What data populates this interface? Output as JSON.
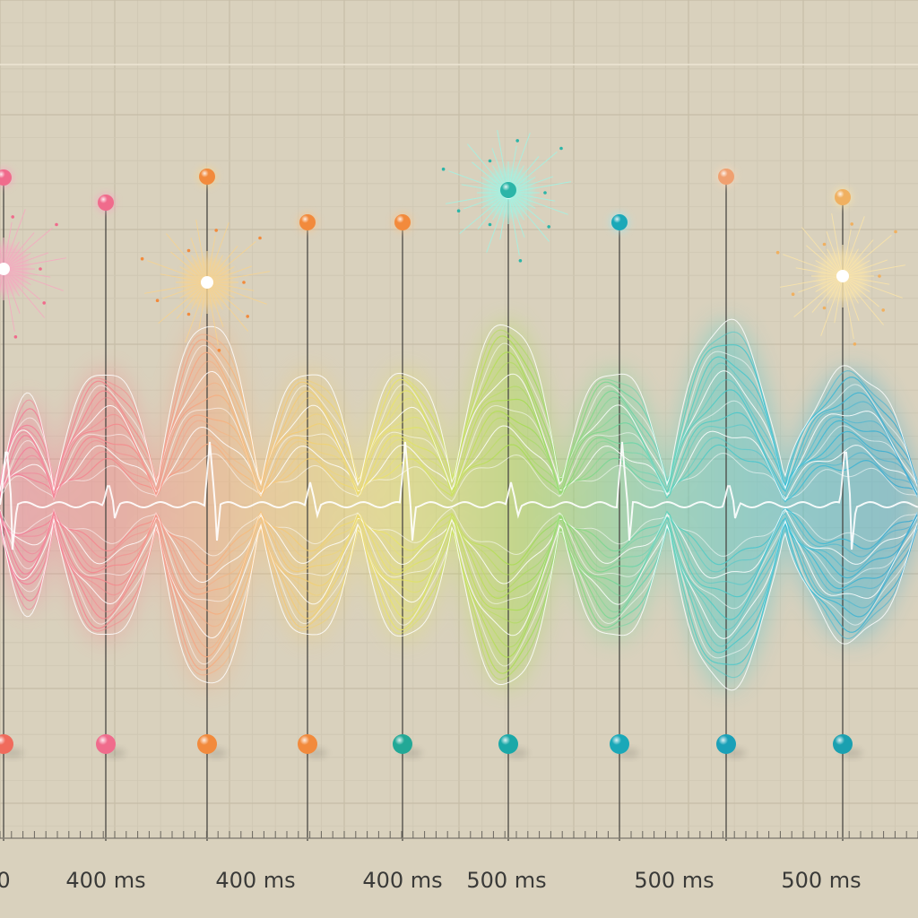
{
  "chart_data": {
    "type": "line",
    "title": "",
    "xlabel": "",
    "ylabel": "",
    "grid": true,
    "x_tick_labels": [
      "0",
      "400 ms",
      "400 ms",
      "400 ms",
      "500 ms",
      "500 ms",
      "500 ms"
    ],
    "markers": [
      {
        "color": "#f06b8c",
        "glow": "#f7a6c0",
        "burst": true
      },
      {
        "color": "#f06b8c",
        "glow": "#f7a6c0",
        "burst": false
      },
      {
        "color": "#f28a3c",
        "glow": "#f9d38c",
        "burst": true
      },
      {
        "color": "#f28a3c",
        "glow": "#f9c48c",
        "burst": false
      },
      {
        "color": "#f28a3c",
        "glow": "#f9c48c",
        "burst": false
      },
      {
        "color": "#2bb5a8",
        "glow": "#9ff5e6",
        "burst": true
      },
      {
        "color": "#1aa8b8",
        "glow": "#9fe7f0",
        "burst": false
      },
      {
        "color": "#f0a070",
        "glow": "#fcd8b8",
        "burst": false
      },
      {
        "color": "#f0b060",
        "glow": "#fde6a8",
        "burst": true
      }
    ],
    "bottom_markers": [
      "#f06b5c",
      "#f06b8c",
      "#f28a3c",
      "#f28a3c",
      "#22a896",
      "#1aa8a8",
      "#1aa8b8",
      "#1aa0b8",
      "#1aa0b0"
    ],
    "waveform": {
      "lobes": [
        0.45,
        0.6,
        0.85,
        0.6,
        0.6,
        0.85,
        0.6,
        0.85,
        0.6
      ],
      "gradient": [
        "#f47a9a",
        "#f58a8a",
        "#f6c27a",
        "#e9e46a",
        "#a6dc52",
        "#5fd3b8",
        "#3cc0d6",
        "#3aa8d0"
      ]
    }
  }
}
